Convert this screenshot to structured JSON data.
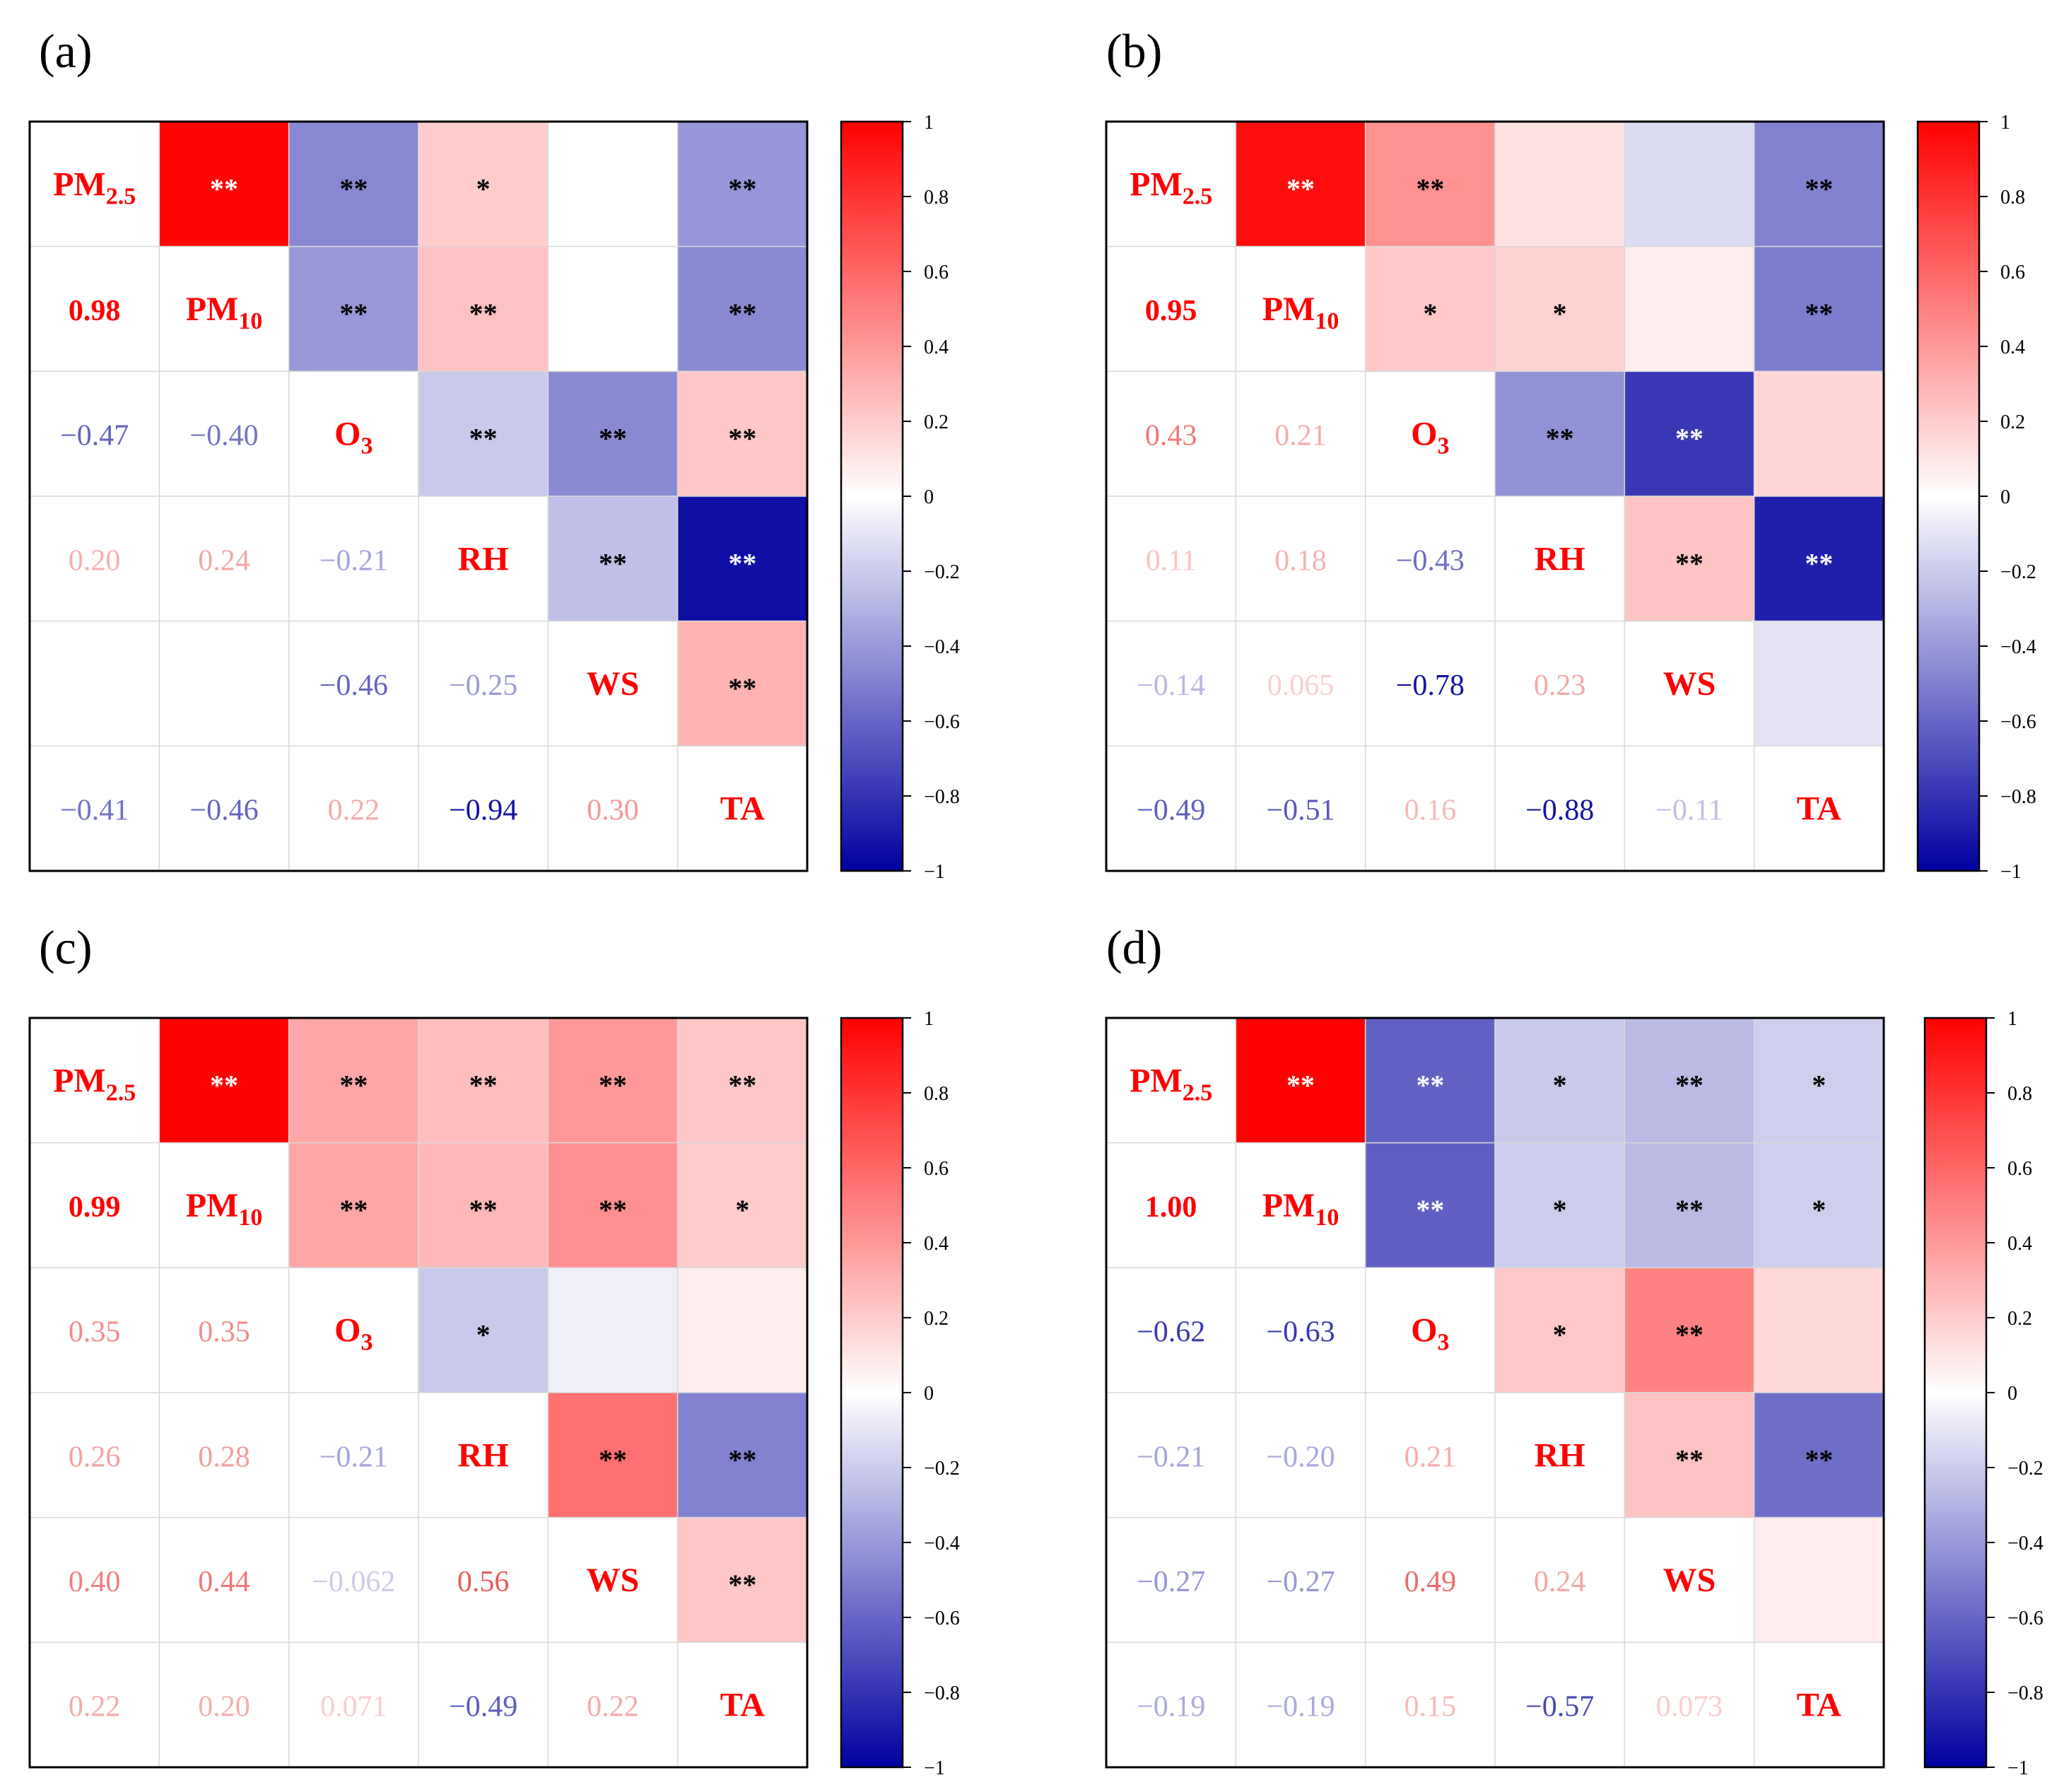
{
  "figure": {
    "variables": [
      "PM2.5",
      "PM10",
      "O3",
      "RH",
      "WS",
      "TA"
    ],
    "label_parts": [
      {
        "base": "PM",
        "sub": "2.5"
      },
      {
        "base": "PM",
        "sub": "10"
      },
      {
        "base": "O",
        "sub": "3"
      },
      {
        "base": "RH",
        "sub": ""
      },
      {
        "base": "WS",
        "sub": ""
      },
      {
        "base": "TA",
        "sub": ""
      }
    ],
    "colorbar_ticks": [
      "1",
      "0.8",
      "0.6",
      "0.4",
      "0.2",
      "0",
      "−0.2",
      "−0.4",
      "−0.6",
      "−0.8",
      "−1"
    ],
    "colors": {
      "positive": "#ff0000",
      "negative": "#0000a0",
      "neutral": "#ffffff",
      "label": "#ff0000",
      "grid": "#d9d9d9"
    }
  },
  "chart_data": [
    {
      "type": "heatmap",
      "panel": "(a)",
      "variables": [
        "PM2.5",
        "PM10",
        "O3",
        "RH",
        "WS",
        "TA"
      ],
      "values": [
        [
          1,
          0.98,
          -0.47,
          0.2,
          null,
          -0.41
        ],
        [
          0.98,
          1,
          -0.4,
          0.24,
          null,
          -0.46
        ],
        [
          -0.47,
          -0.4,
          1,
          -0.21,
          -0.46,
          0.22
        ],
        [
          0.2,
          0.24,
          -0.21,
          1,
          -0.25,
          -0.94
        ],
        [
          null,
          null,
          -0.46,
          -0.25,
          1,
          0.3
        ],
        [
          -0.41,
          -0.46,
          0.22,
          -0.94,
          0.3,
          1
        ]
      ],
      "lower_labels": [
        [
          null,
          null,
          null,
          null,
          null,
          null
        ],
        [
          "0.98",
          null,
          null,
          null,
          null,
          null
        ],
        [
          "−0.47",
          "−0.40",
          null,
          null,
          null,
          null
        ],
        [
          "0.20",
          "0.24",
          "−0.21",
          null,
          null,
          null
        ],
        [
          "",
          "",
          "−0.46",
          "−0.25",
          null,
          null
        ],
        [
          "−0.41",
          "−0.46",
          "0.22",
          "−0.94",
          "0.30",
          null
        ]
      ],
      "significance": [
        [
          "",
          "**",
          "**",
          "*",
          "",
          "**"
        ],
        [
          "",
          "",
          "**",
          "**",
          "",
          "**"
        ],
        [
          "",
          "",
          "",
          "**",
          "**",
          "**"
        ],
        [
          "",
          "",
          "",
          "",
          "**",
          "**"
        ],
        [
          "",
          "",
          "",
          "",
          "",
          "**"
        ],
        [
          "",
          "",
          "",
          "",
          "",
          ""
        ]
      ],
      "colorbar": {
        "min": -1,
        "max": 1,
        "ticks": [
          1,
          0.8,
          0.6,
          0.4,
          0.2,
          0,
          -0.2,
          -0.4,
          -0.6,
          -0.8,
          -1
        ]
      }
    },
    {
      "type": "heatmap",
      "panel": "(b)",
      "variables": [
        "PM2.5",
        "PM10",
        "O3",
        "RH",
        "WS",
        "TA"
      ],
      "values": [
        [
          1,
          0.95,
          0.43,
          0.11,
          -0.14,
          -0.49
        ],
        [
          0.95,
          1,
          0.21,
          0.18,
          0.065,
          -0.51
        ],
        [
          0.43,
          0.21,
          1,
          -0.43,
          -0.78,
          0.16
        ],
        [
          0.11,
          0.18,
          -0.43,
          1,
          0.23,
          -0.88
        ],
        [
          -0.14,
          0.065,
          -0.78,
          0.23,
          1,
          -0.11
        ],
        [
          -0.49,
          -0.51,
          0.16,
          -0.88,
          -0.11,
          1
        ]
      ],
      "lower_labels": [
        [
          null,
          null,
          null,
          null,
          null,
          null
        ],
        [
          "0.95",
          null,
          null,
          null,
          null,
          null
        ],
        [
          "0.43",
          "0.21",
          null,
          null,
          null,
          null
        ],
        [
          "0.11",
          "0.18",
          "−0.43",
          null,
          null,
          null
        ],
        [
          "−0.14",
          "0.065",
          "−0.78",
          "0.23",
          null,
          null
        ],
        [
          "−0.49",
          "−0.51",
          "0.16",
          "−0.88",
          "−0.11",
          null
        ]
      ],
      "significance": [
        [
          "",
          "**",
          "**",
          "",
          "",
          "**"
        ],
        [
          "",
          "",
          "*",
          "*",
          "",
          "**"
        ],
        [
          "",
          "",
          "",
          "**",
          "**",
          ""
        ],
        [
          "",
          "",
          "",
          "",
          "**",
          "**"
        ],
        [
          "",
          "",
          "",
          "",
          "",
          ""
        ],
        [
          "",
          "",
          "",
          "",
          "",
          ""
        ]
      ],
      "colorbar": {
        "min": -1,
        "max": 1,
        "ticks": [
          1,
          0.8,
          0.6,
          0.4,
          0.2,
          0,
          -0.2,
          -0.4,
          -0.6,
          -0.8,
          -1
        ]
      }
    },
    {
      "type": "heatmap",
      "panel": "(c)",
      "variables": [
        "PM2.5",
        "PM10",
        "O3",
        "RH",
        "WS",
        "TA"
      ],
      "values": [
        [
          1,
          0.99,
          0.35,
          0.26,
          0.4,
          0.22
        ],
        [
          0.99,
          1,
          0.35,
          0.28,
          0.44,
          0.2
        ],
        [
          0.35,
          0.35,
          1,
          -0.21,
          -0.062,
          0.071
        ],
        [
          0.26,
          0.28,
          -0.21,
          1,
          0.56,
          -0.49
        ],
        [
          0.4,
          0.44,
          -0.062,
          0.56,
          1,
          0.22
        ],
        [
          0.22,
          0.2,
          0.071,
          -0.49,
          0.22,
          1
        ]
      ],
      "lower_labels": [
        [
          null,
          null,
          null,
          null,
          null,
          null
        ],
        [
          "0.99",
          null,
          null,
          null,
          null,
          null
        ],
        [
          "0.35",
          "0.35",
          null,
          null,
          null,
          null
        ],
        [
          "0.26",
          "0.28",
          "−0.21",
          null,
          null,
          null
        ],
        [
          "0.40",
          "0.44",
          "−0.062",
          "0.56",
          null,
          null
        ],
        [
          "0.22",
          "0.20",
          "0.071",
          "−0.49",
          "0.22",
          null
        ]
      ],
      "significance": [
        [
          "",
          "**",
          "**",
          "**",
          "**",
          "**"
        ],
        [
          "",
          "",
          "**",
          "**",
          "**",
          "*"
        ],
        [
          "",
          "",
          "",
          "*",
          "",
          ""
        ],
        [
          "",
          "",
          "",
          "",
          "**",
          "**"
        ],
        [
          "",
          "",
          "",
          "",
          "",
          "**"
        ],
        [
          "",
          "",
          "",
          "",
          "",
          ""
        ]
      ],
      "colorbar": {
        "min": -1,
        "max": 1,
        "ticks": [
          1,
          0.8,
          0.6,
          0.4,
          0.2,
          0,
          -0.2,
          -0.4,
          -0.6,
          -0.8,
          -1
        ]
      }
    },
    {
      "type": "heatmap",
      "panel": "(d)",
      "variables": [
        "PM2.5",
        "PM10",
        "O3",
        "RH",
        "WS",
        "TA"
      ],
      "values": [
        [
          1,
          1.0,
          -0.62,
          -0.21,
          -0.27,
          -0.19
        ],
        [
          1.0,
          1,
          -0.63,
          -0.2,
          -0.27,
          -0.19
        ],
        [
          -0.62,
          -0.63,
          1,
          0.21,
          0.49,
          0.15
        ],
        [
          -0.21,
          -0.2,
          0.21,
          1,
          0.24,
          -0.57
        ],
        [
          -0.27,
          -0.27,
          0.49,
          0.24,
          1,
          0.073
        ],
        [
          -0.19,
          -0.19,
          0.15,
          -0.57,
          0.073,
          1
        ]
      ],
      "lower_labels": [
        [
          null,
          null,
          null,
          null,
          null,
          null
        ],
        [
          "1.00",
          null,
          null,
          null,
          null,
          null
        ],
        [
          "−0.62",
          "−0.63",
          null,
          null,
          null,
          null
        ],
        [
          "−0.21",
          "−0.20",
          "0.21",
          null,
          null,
          null
        ],
        [
          "−0.27",
          "−0.27",
          "0.49",
          "0.24",
          null,
          null
        ],
        [
          "−0.19",
          "−0.19",
          "0.15",
          "−0.57",
          "0.073",
          null
        ]
      ],
      "significance": [
        [
          "",
          "**",
          "**",
          "*",
          "**",
          "*"
        ],
        [
          "",
          "",
          "**",
          "*",
          "**",
          "*"
        ],
        [
          "",
          "",
          "",
          "*",
          "**",
          ""
        ],
        [
          "",
          "",
          "",
          "",
          "**",
          "**"
        ],
        [
          "",
          "",
          "",
          "",
          "",
          ""
        ],
        [
          "",
          "",
          "",
          "",
          "",
          ""
        ]
      ],
      "colorbar": {
        "min": -1,
        "max": 1,
        "ticks": [
          1,
          0.8,
          0.6,
          0.4,
          0.2,
          0,
          -0.2,
          -0.4,
          -0.6,
          -0.8,
          -1
        ]
      }
    }
  ]
}
